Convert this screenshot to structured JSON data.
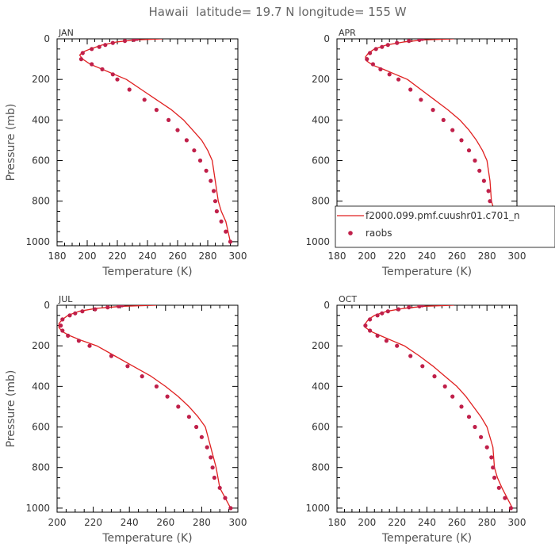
{
  "figure": {
    "title": "Hawaii  latitude= 19.7 N longitude= 155 W"
  },
  "style": {
    "model_color": "#e02020",
    "obs_color": "#c0204a",
    "frame_color": "#000000",
    "text_color": "#333333"
  },
  "chart_data": [
    {
      "type": "line",
      "panel_label": "JAN",
      "xlabel": "Temperature (K)",
      "ylabel": "Pressure (mb)",
      "xlim": [
        180,
        300
      ],
      "ylim": [
        0,
        1020
      ],
      "y_inverted": true,
      "xticks": [
        180,
        200,
        220,
        240,
        260,
        280,
        300
      ],
      "yticks": [
        0,
        200,
        400,
        600,
        800,
        1000
      ],
      "series": [
        {
          "name": "",
          "kind": "line",
          "x": [
            250,
            232,
            220,
            210,
            202,
            197,
            195,
            197,
            202,
            210,
            218,
            226,
            236,
            246,
            256,
            264,
            270,
            276,
            280,
            283,
            285,
            287,
            289,
            292,
            295
          ],
          "y": [
            0,
            5,
            15,
            30,
            50,
            65,
            80,
            100,
            125,
            150,
            175,
            200,
            250,
            300,
            350,
            400,
            450,
            500,
            550,
            600,
            700,
            800,
            850,
            900,
            1000
          ]
        },
        {
          "name": "",
          "kind": "scatter",
          "x": [
            233,
            231,
            225,
            217,
            212,
            208,
            203,
            197,
            196,
            203,
            210,
            217,
            220,
            228,
            238,
            246,
            254,
            260,
            266,
            271,
            275,
            279,
            282,
            284,
            285,
            286,
            289,
            292,
            295
          ],
          "y": [
            0,
            5,
            10,
            20,
            30,
            40,
            50,
            70,
            100,
            125,
            150,
            175,
            200,
            250,
            300,
            350,
            400,
            450,
            500,
            550,
            600,
            650,
            700,
            750,
            800,
            850,
            900,
            950,
            1000
          ]
        }
      ]
    },
    {
      "type": "line",
      "panel_label": "APR",
      "xlabel": "Temperature (K)",
      "ylabel": "",
      "xlim": [
        180,
        300
      ],
      "ylim": [
        0,
        1020
      ],
      "y_inverted": true,
      "xticks": [
        180,
        200,
        220,
        240,
        260,
        280,
        300
      ],
      "yticks": [
        0,
        200,
        400,
        600,
        800,
        1000
      ],
      "series": [
        {
          "name": "",
          "kind": "line",
          "x": [
            258,
            238,
            225,
            213,
            205,
            201,
            199,
            200,
            204,
            211,
            219,
            227,
            236,
            245,
            254,
            262,
            268,
            273,
            277,
            280,
            282,
            283,
            285,
            288,
            294
          ],
          "y": [
            0,
            5,
            15,
            30,
            50,
            70,
            90,
            110,
            130,
            150,
            175,
            200,
            250,
            300,
            350,
            400,
            450,
            500,
            550,
            600,
            700,
            800,
            850,
            900,
            1000
          ]
        },
        {
          "name": "",
          "kind": "scatter",
          "x": [
            237,
            235,
            228,
            220,
            214,
            210,
            206,
            202,
            200,
            204,
            209,
            215,
            221,
            229,
            236,
            244,
            251,
            257,
            263,
            268,
            272,
            275,
            278,
            281,
            282,
            284,
            286,
            290,
            294
          ],
          "y": [
            0,
            5,
            10,
            20,
            30,
            40,
            50,
            70,
            100,
            125,
            150,
            175,
            200,
            250,
            300,
            350,
            400,
            450,
            500,
            550,
            600,
            650,
            700,
            750,
            800,
            850,
            900,
            950,
            1000
          ]
        }
      ],
      "legend": {
        "placement": "bottom-right",
        "entries": [
          {
            "label": "f2000.099.pmf.cuushr01.c701_n",
            "marker": "line"
          },
          {
            "label": "raobs",
            "marker": "dot"
          }
        ]
      }
    },
    {
      "type": "line",
      "panel_label": "JUL",
      "xlabel": "Temperature (K)",
      "ylabel": "Pressure (mb)",
      "xlim": [
        200,
        300
      ],
      "ylim": [
        0,
        1020
      ],
      "y_inverted": true,
      "xticks": [
        200,
        220,
        240,
        260,
        280,
        300
      ],
      "yticks": [
        0,
        200,
        400,
        600,
        800,
        1000
      ],
      "series": [
        {
          "name": "",
          "kind": "line",
          "x": [
            255,
            236,
            222,
            212,
            206,
            203,
            201,
            201,
            203,
            207,
            214,
            222,
            232,
            242,
            252,
            260,
            267,
            273,
            278,
            282,
            285,
            288,
            290,
            296
          ],
          "y": [
            0,
            5,
            15,
            30,
            50,
            70,
            90,
            110,
            130,
            150,
            175,
            200,
            250,
            300,
            350,
            400,
            450,
            500,
            550,
            600,
            700,
            800,
            900,
            1000
          ]
        },
        {
          "name": "",
          "kind": "scatter",
          "x": [
            236,
            234,
            228,
            221,
            214,
            210,
            207,
            203,
            202,
            203,
            206,
            212,
            218,
            230,
            239,
            247,
            255,
            261,
            267,
            273,
            277,
            280,
            283,
            285,
            286,
            287,
            290,
            293,
            296
          ],
          "y": [
            0,
            5,
            10,
            20,
            30,
            40,
            50,
            70,
            100,
            125,
            150,
            175,
            200,
            250,
            300,
            350,
            400,
            450,
            500,
            550,
            600,
            650,
            700,
            750,
            800,
            850,
            900,
            950,
            1000
          ]
        }
      ]
    },
    {
      "type": "line",
      "panel_label": "OCT",
      "xlabel": "Temperature (K)",
      "ylabel": "",
      "xlim": [
        180,
        300
      ],
      "ylim": [
        0,
        1020
      ],
      "y_inverted": true,
      "xticks": [
        180,
        200,
        220,
        240,
        260,
        280,
        300
      ],
      "yticks": [
        0,
        200,
        400,
        600,
        800,
        1000
      ],
      "series": [
        {
          "name": "",
          "kind": "line",
          "x": [
            258,
            238,
            225,
            213,
            205,
            201,
            199,
            199,
            203,
            209,
            217,
            225,
            235,
            244,
            252,
            260,
            266,
            271,
            276,
            280,
            284,
            285,
            287,
            290,
            297
          ],
          "y": [
            0,
            5,
            15,
            30,
            50,
            70,
            90,
            110,
            130,
            150,
            175,
            200,
            250,
            300,
            350,
            400,
            450,
            500,
            550,
            600,
            700,
            800,
            850,
            900,
            1000
          ]
        },
        {
          "name": "",
          "kind": "scatter",
          "x": [
            237,
            235,
            228,
            221,
            214,
            210,
            207,
            202,
            199,
            202,
            207,
            213,
            220,
            229,
            237,
            245,
            252,
            257,
            263,
            268,
            272,
            276,
            280,
            283,
            284,
            285,
            288,
            292,
            296
          ],
          "y": [
            0,
            5,
            10,
            20,
            30,
            40,
            50,
            70,
            100,
            125,
            150,
            175,
            200,
            250,
            300,
            350,
            400,
            450,
            500,
            550,
            600,
            650,
            700,
            750,
            800,
            850,
            900,
            950,
            1000
          ]
        }
      ]
    }
  ]
}
